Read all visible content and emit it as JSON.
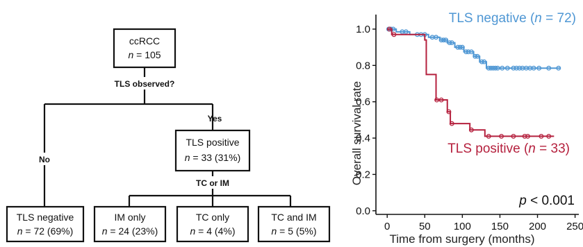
{
  "flowchart": {
    "root": {
      "line1": "ccRCC",
      "n_label": "n",
      "n_value": " = 105"
    },
    "question1": "TLS observed?",
    "branch_no": "No",
    "branch_yes": "Yes",
    "tls_positive": {
      "line1": "TLS positive",
      "n_label": "n",
      "n_value": " = 33 (31%)"
    },
    "question2": "TC or IM",
    "tls_negative": {
      "line1": "TLS negative",
      "n_label": "n",
      "n_value": " = 72 (69%)"
    },
    "im_only": {
      "line1": "IM only",
      "n_label": "n",
      "n_value": " = 24 (23%)"
    },
    "tc_only": {
      "line1": "TC only",
      "n_label": "n",
      "n_value": " = 4 (4%)"
    },
    "tc_and_im": {
      "line1": "TC and IM",
      "n_label": "n",
      "n_value": " = 5 (5%)"
    }
  },
  "chart_data": {
    "type": "line",
    "subtype": "kaplan-meier",
    "title": "",
    "xlabel": "Time from surgery (months)",
    "ylabel": "Overall survival rate",
    "xlim": [
      -15,
      255
    ],
    "ylim": [
      -0.02,
      1.08
    ],
    "xticks": [
      0,
      50,
      100,
      150,
      200,
      250
    ],
    "yticks": [
      0.0,
      0.2,
      0.4,
      0.6,
      0.8,
      1.0
    ],
    "ytick_labels": [
      "0.0",
      "0.2",
      "0.4",
      "0.6",
      "0.8",
      "1.0"
    ],
    "grid": false,
    "annotation": {
      "italic": "p",
      "text": " < 0.001"
    },
    "series": [
      {
        "name": "TLS negative",
        "label_prefix": "TLS negative (",
        "label_italic": "n",
        "label_suffix": " = 72)",
        "color": "#4f97d4",
        "steps": [
          [
            0,
            1.0
          ],
          [
            12,
            0.985
          ],
          [
            30,
            0.97
          ],
          [
            55,
            0.955
          ],
          [
            70,
            0.94
          ],
          [
            80,
            0.925
          ],
          [
            90,
            0.9
          ],
          [
            102,
            0.875
          ],
          [
            115,
            0.85
          ],
          [
            123,
            0.82
          ],
          [
            132,
            0.785
          ],
          [
            230,
            0.785
          ]
        ],
        "censored": [
          [
            2,
            1.0
          ],
          [
            5,
            1.0
          ],
          [
            8,
            1.0
          ],
          [
            20,
            0.985
          ],
          [
            25,
            0.985
          ],
          [
            40,
            0.97
          ],
          [
            45,
            0.97
          ],
          [
            50,
            0.97
          ],
          [
            60,
            0.955
          ],
          [
            65,
            0.955
          ],
          [
            72,
            0.94
          ],
          [
            75,
            0.94
          ],
          [
            78,
            0.94
          ],
          [
            83,
            0.925
          ],
          [
            86,
            0.925
          ],
          [
            94,
            0.9
          ],
          [
            97,
            0.9
          ],
          [
            100,
            0.9
          ],
          [
            105,
            0.875
          ],
          [
            108,
            0.875
          ],
          [
            112,
            0.875
          ],
          [
            117,
            0.85
          ],
          [
            120,
            0.85
          ],
          [
            126,
            0.82
          ],
          [
            129,
            0.82
          ],
          [
            135,
            0.785
          ],
          [
            138,
            0.785
          ],
          [
            141,
            0.785
          ],
          [
            144,
            0.785
          ],
          [
            147,
            0.785
          ],
          [
            153,
            0.785
          ],
          [
            160,
            0.785
          ],
          [
            168,
            0.785
          ],
          [
            172,
            0.785
          ],
          [
            176,
            0.785
          ],
          [
            180,
            0.785
          ],
          [
            185,
            0.785
          ],
          [
            190,
            0.785
          ],
          [
            195,
            0.785
          ],
          [
            202,
            0.785
          ],
          [
            215,
            0.785
          ],
          [
            228,
            0.785
          ]
        ]
      },
      {
        "name": "TLS positive",
        "label_prefix": "TLS positive (",
        "label_italic": "n",
        "label_suffix": " = 33)",
        "color": "#b5213e",
        "steps": [
          [
            0,
            1.0
          ],
          [
            6,
            0.97
          ],
          [
            50,
            0.94
          ],
          [
            52,
            0.75
          ],
          [
            65,
            0.61
          ],
          [
            80,
            0.545
          ],
          [
            84,
            0.48
          ],
          [
            110,
            0.445
          ],
          [
            130,
            0.41
          ],
          [
            222,
            0.41
          ]
        ],
        "censored": [
          [
            3,
            1.0
          ],
          [
            9,
            0.97
          ],
          [
            66,
            0.61
          ],
          [
            72,
            0.61
          ],
          [
            82,
            0.545
          ],
          [
            86,
            0.48
          ],
          [
            112,
            0.445
          ],
          [
            135,
            0.41
          ],
          [
            152,
            0.41
          ],
          [
            168,
            0.41
          ],
          [
            183,
            0.41
          ],
          [
            187,
            0.41
          ],
          [
            205,
            0.41
          ],
          [
            215,
            0.41
          ]
        ]
      }
    ]
  }
}
